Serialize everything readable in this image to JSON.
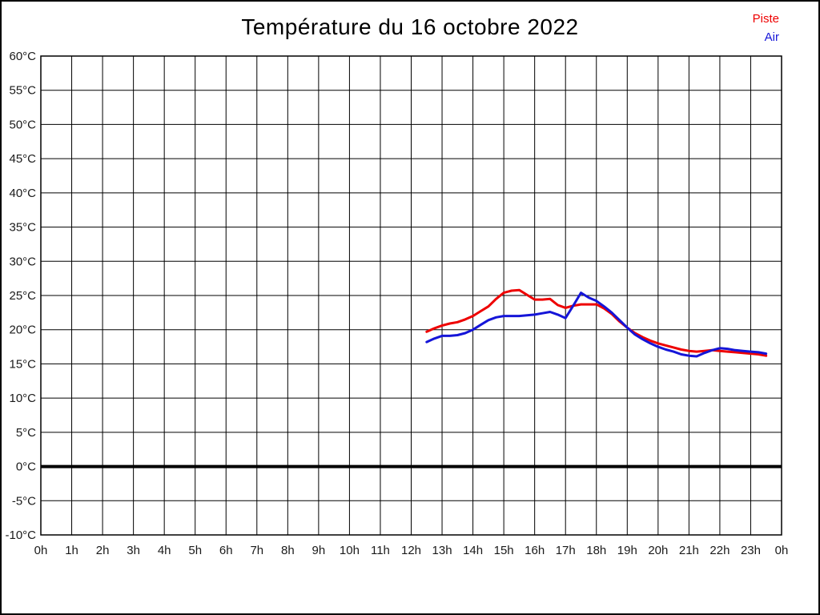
{
  "chart_data": {
    "type": "line",
    "title": "Température du 16 octobre 2022",
    "xlabel": "",
    "ylabel": "",
    "x_unit": "hours",
    "y_unit": "°C",
    "xlim": [
      0,
      24
    ],
    "ylim": [
      -10,
      60
    ],
    "grid": true,
    "legend_position": "top-right-outside",
    "axis_color": "#000000",
    "tick_label_color": "#1a1a1a",
    "x_ticks": {
      "values": [
        0,
        1,
        2,
        3,
        4,
        5,
        6,
        7,
        8,
        9,
        10,
        11,
        12,
        13,
        14,
        15,
        16,
        17,
        18,
        19,
        20,
        21,
        22,
        23,
        24
      ],
      "labels": [
        "0h",
        "1h",
        "2h",
        "3h",
        "4h",
        "5h",
        "6h",
        "7h",
        "8h",
        "9h",
        "10h",
        "11h",
        "12h",
        "13h",
        "14h",
        "15h",
        "16h",
        "17h",
        "18h",
        "19h",
        "20h",
        "21h",
        "22h",
        "23h",
        "0h"
      ]
    },
    "y_ticks": {
      "values": [
        60,
        55,
        50,
        45,
        40,
        35,
        30,
        25,
        20,
        15,
        10,
        5,
        0,
        -5,
        -10
      ],
      "labels": [
        "60°C",
        "55°C",
        "50°C",
        "45°C",
        "40°C",
        "35°C",
        "30°C",
        "25°C",
        "20°C",
        "15°C",
        "10°C",
        "5°C",
        "0°C",
        "-5°C",
        "-10°C"
      ]
    },
    "zero_line": {
      "value": 0,
      "bold": true,
      "color": "#000000"
    },
    "x": [
      12.5,
      12.75,
      13,
      13.25,
      13.5,
      13.75,
      14,
      14.25,
      14.5,
      14.75,
      15,
      15.25,
      15.5,
      15.75,
      16,
      16.25,
      16.5,
      16.75,
      17,
      17.25,
      17.5,
      17.75,
      18,
      18.25,
      18.5,
      18.75,
      19,
      19.25,
      19.5,
      19.75,
      20,
      20.25,
      20.5,
      20.75,
      21,
      21.25,
      21.5,
      21.75,
      22,
      22.25,
      22.5,
      22.75,
      23,
      23.25,
      23.5
    ],
    "series": [
      {
        "name": "Piste",
        "color": "#ee0000",
        "values": [
          19.7,
          20.2,
          20.6,
          20.9,
          21.1,
          21.5,
          22.0,
          22.7,
          23.4,
          24.5,
          25.4,
          25.7,
          25.8,
          25.1,
          24.4,
          24.4,
          24.5,
          23.6,
          23.2,
          23.5,
          23.7,
          23.7,
          23.7,
          23.1,
          22.3,
          21.2,
          20.3,
          19.5,
          18.9,
          18.4,
          18.0,
          17.7,
          17.4,
          17.1,
          16.9,
          16.8,
          16.9,
          17.0,
          16.9,
          16.8,
          16.7,
          16.6,
          16.5,
          16.4,
          16.2
        ]
      },
      {
        "name": "Air",
        "color": "#1515d8",
        "values": [
          18.2,
          18.7,
          19.1,
          19.1,
          19.2,
          19.5,
          20.0,
          20.7,
          21.4,
          21.8,
          22.0,
          22.0,
          22.0,
          22.1,
          22.2,
          22.4,
          22.6,
          22.2,
          21.7,
          23.5,
          25.4,
          24.7,
          24.2,
          23.4,
          22.5,
          21.4,
          20.3,
          19.3,
          18.6,
          18.0,
          17.5,
          17.1,
          16.8,
          16.4,
          16.2,
          16.1,
          16.6,
          17.0,
          17.3,
          17.2,
          17.0,
          16.9,
          16.8,
          16.7,
          16.5
        ]
      }
    ]
  }
}
